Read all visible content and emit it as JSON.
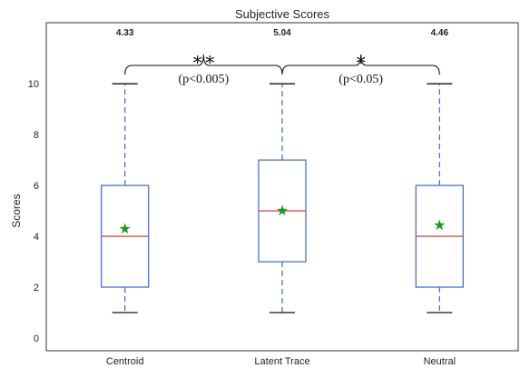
{
  "chart_data": {
    "type": "boxplot",
    "title": "Subjective Scores",
    "xlabel": "",
    "ylabel": "Scores",
    "ylim": [
      -0.5,
      12.4
    ],
    "yticks": [
      0,
      2,
      4,
      6,
      8,
      10
    ],
    "grid": false,
    "categories": [
      "Centroid",
      "Latent Trace",
      "Neutral"
    ],
    "boxes": [
      {
        "category": "Centroid",
        "whisker_low": 1,
        "q1": 2,
        "median": 4,
        "q3": 6,
        "whisker_high": 10,
        "mean": 4.33
      },
      {
        "category": "Latent Trace",
        "whisker_low": 1,
        "q1": 3,
        "median": 5,
        "q3": 7,
        "whisker_high": 10,
        "mean": 5.04
      },
      {
        "category": "Neutral",
        "whisker_low": 1,
        "q1": 2,
        "median": 4,
        "q3": 6,
        "whisker_high": 10,
        "mean": 4.46
      }
    ],
    "mean_labels": [
      "4.33",
      "5.04",
      "4.46"
    ],
    "annotations": [
      {
        "from": "Centroid",
        "to": "Latent Trace",
        "stars": "∗∗",
        "label": "(p<0.005)"
      },
      {
        "from": "Latent Trace",
        "to": "Neutral",
        "stars": "∗",
        "label": "(p<0.05)"
      }
    ],
    "colors": {
      "box": "#4a72d4",
      "median": "#d6504a",
      "mean": "#1a9a1a",
      "axis": "#333333"
    }
  }
}
